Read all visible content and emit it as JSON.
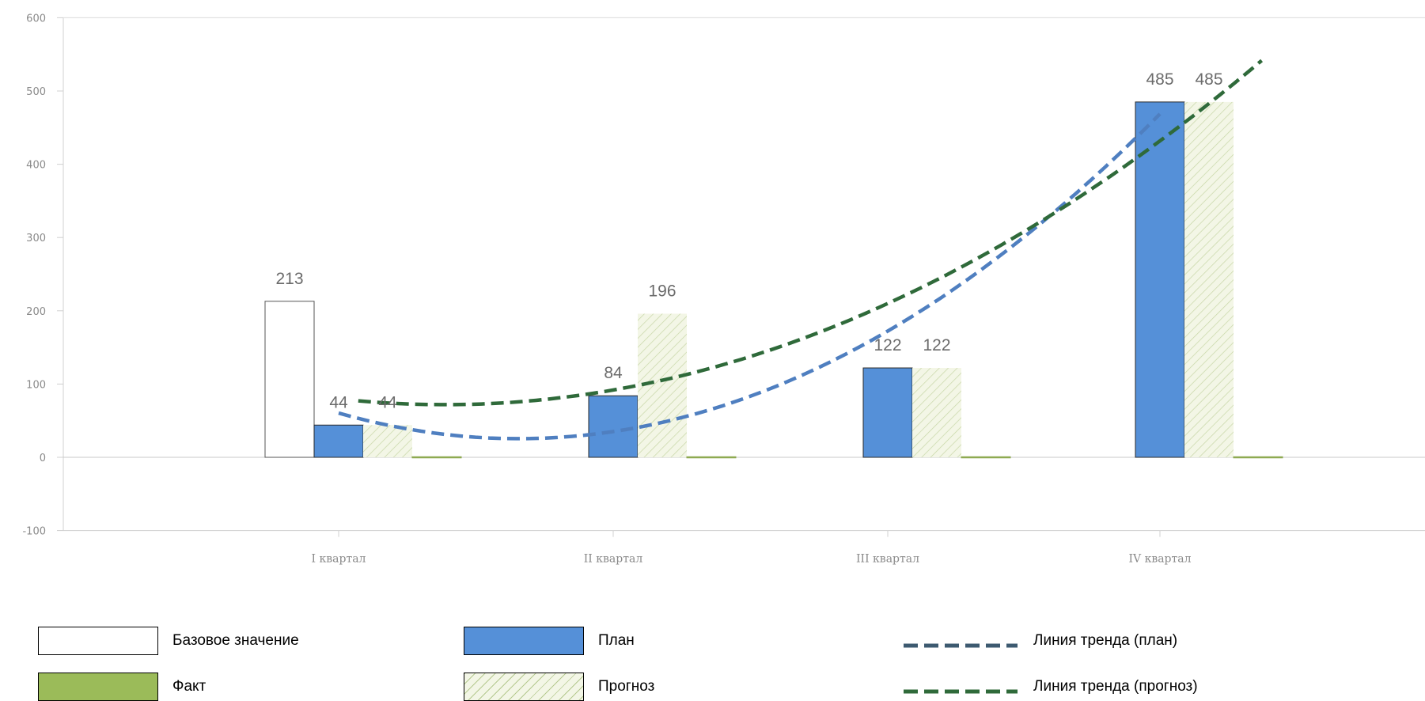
{
  "chart_data": {
    "type": "bar",
    "categories": [
      "I квартал",
      "II квартал",
      "III квартал",
      "IV квартал"
    ],
    "ylim": [
      -100,
      600
    ],
    "yticks": [
      -100,
      0,
      100,
      200,
      300,
      400,
      500,
      600
    ],
    "grid": false,
    "legend_position": "bottom",
    "series": [
      {
        "name": "Базовое значение",
        "values": [
          213,
          null,
          null,
          null
        ],
        "color": "#ffffff",
        "labels": [
          "213",
          "",
          "",
          ""
        ]
      },
      {
        "name": "План",
        "values": [
          44,
          84,
          122,
          485
        ],
        "color": "#5590d8",
        "labels": [
          "44",
          "84",
          "122",
          "485"
        ]
      },
      {
        "name": "Прогноз",
        "values": [
          44,
          196,
          122,
          485
        ],
        "color": "#f3f6e6",
        "pattern": "hatch",
        "labels": [
          "44",
          "196",
          "122",
          "485"
        ]
      },
      {
        "name": "Факт",
        "values": [
          0,
          0,
          0,
          0
        ],
        "color": "#9bbb59",
        "labels": [
          "",
          "",
          "",
          ""
        ]
      }
    ],
    "trendlines": [
      {
        "name": "Линия тренда (план)",
        "series": "План",
        "type": "polynomial",
        "color": "#4f7fc0",
        "style": "dashed"
      },
      {
        "name": "Линия тренда (прогноз)",
        "series": "Прогноз",
        "type": "polynomial",
        "color": "#2f6a3a",
        "style": "dashed"
      }
    ]
  },
  "legend": [
    {
      "label": "Базовое значение",
      "kind": "base"
    },
    {
      "label": "План",
      "kind": "plan"
    },
    {
      "label": "Линия тренда (план)",
      "kind": "trend-plan"
    },
    {
      "label": "Факт",
      "kind": "fact"
    },
    {
      "label": "Прогноз",
      "kind": "forecast"
    },
    {
      "label": "Линия тренда (прогноз)",
      "kind": "trend-forecast"
    }
  ]
}
